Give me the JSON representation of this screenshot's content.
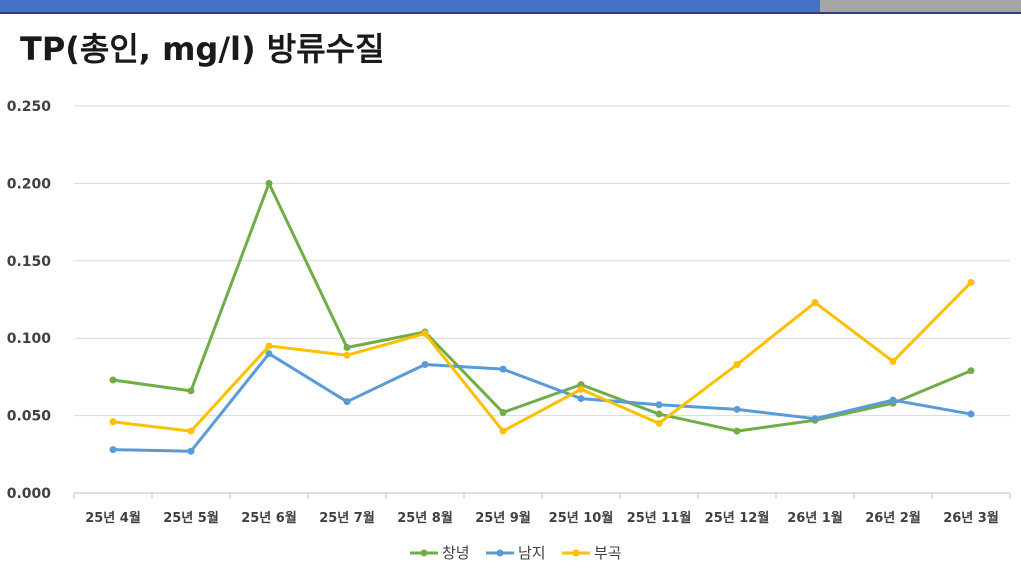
{
  "title": "TP(총인, mg/l) 방류수질",
  "chart_data": {
    "type": "line",
    "title": "TP(총인, mg/l) 방류수질",
    "categories": [
      "25년 4월",
      "25년 5월",
      "25년 6월",
      "25년 7월",
      "25년 8월",
      "25년 9월",
      "25년 10월",
      "25년 11월",
      "25년 12월",
      "26년 1월",
      "26년 2월",
      "26년 3월"
    ],
    "yticks": [
      "0.000",
      "0.050",
      "0.100",
      "0.150",
      "0.200",
      "0.250"
    ],
    "ylim": [
      0,
      0.25
    ],
    "grid": true,
    "legend_position": "bottom",
    "series": [
      {
        "name": "창녕",
        "color": "#70AD47",
        "values": [
          0.073,
          0.066,
          0.2,
          0.094,
          0.104,
          0.052,
          0.07,
          0.051,
          0.04,
          0.047,
          0.058,
          0.079
        ]
      },
      {
        "name": "남지",
        "color": "#5B9BD5",
        "values": [
          0.028,
          0.027,
          0.09,
          0.059,
          0.083,
          0.08,
          0.061,
          0.057,
          0.054,
          0.048,
          0.06,
          0.051
        ]
      },
      {
        "name": "부곡",
        "color": "#FFC000",
        "values": [
          0.046,
          0.04,
          0.095,
          0.089,
          0.103,
          0.04,
          0.067,
          0.045,
          0.083,
          0.123,
          0.085,
          0.136
        ]
      }
    ]
  }
}
